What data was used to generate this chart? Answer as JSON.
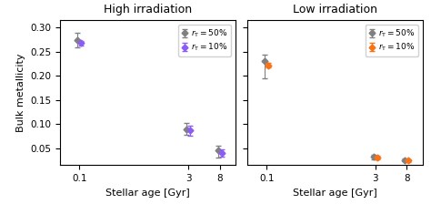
{
  "high_irr": {
    "title": "High irradiation",
    "ages": [
      0.1,
      3,
      8
    ],
    "gray": {
      "y": [
        0.275,
        0.09,
        0.046
      ],
      "yerr_lo": [
        0.015,
        0.012,
        0.016
      ],
      "yerr_hi": [
        0.015,
        0.012,
        0.01
      ]
    },
    "color2": {
      "y": [
        0.268,
        0.087,
        0.04
      ],
      "yerr_lo": [
        0.005,
        0.01,
        0.008
      ],
      "yerr_hi": [
        0.005,
        0.01,
        0.008
      ],
      "color": "#8B5CF6",
      "label": "$r_{\\rm T} = 10\\%$"
    },
    "gray_label": "$r_{\\rm T} = 50\\%$"
  },
  "low_irr": {
    "title": "Low irradiation",
    "ages": [
      0.1,
      3,
      8
    ],
    "gray": {
      "y": [
        0.23,
        0.032,
        0.026
      ],
      "yerr_lo": [
        0.035,
        0.004,
        0.003
      ],
      "yerr_hi": [
        0.015,
        0.004,
        0.003
      ]
    },
    "color2": {
      "y": [
        0.222,
        0.031,
        0.025
      ],
      "yerr_lo": [
        0.005,
        0.003,
        0.003
      ],
      "yerr_hi": [
        0.005,
        0.003,
        0.003
      ],
      "color": "#F97316",
      "label": "$r_{\\rm T} = 10\\%$"
    },
    "gray_label": "$r_{\\rm T} = 50\\%$"
  },
  "ylabel": "Bulk metallicity",
  "xlabel": "Stellar age [Gyr]",
  "ylim": [
    0.015,
    0.315
  ],
  "yticks": [
    0.05,
    0.1,
    0.15,
    0.2,
    0.25,
    0.3
  ],
  "gray_color": "#808080",
  "marker": "D",
  "markersize": 3.5,
  "capsize": 2.0,
  "linewidth": 0.8,
  "x_tick_labels": [
    "0.1",
    "3",
    "8"
  ]
}
